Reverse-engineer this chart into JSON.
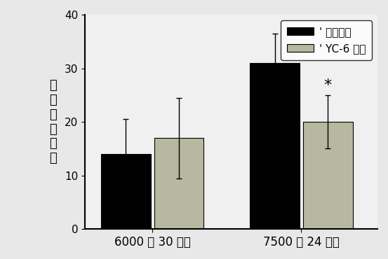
{
  "groups": [
    "6000 米 30 分钟",
    "7500 米 24 小时"
  ],
  "series": [
    {
      "label": "' 溶剂对照",
      "color": "#000000",
      "values": [
        14.0,
        31.0
      ],
      "errors": [
        6.5,
        5.5
      ]
    },
    {
      "label": "' YC-6 处理",
      "color": "#b8b8a0",
      "values": [
        17.0,
        20.0
      ],
      "errors": [
        7.5,
        5.0
      ]
    }
  ],
  "ylabel_chars": [
    "神",
    "经",
    "功",
    "能",
    "评",
    "分"
  ],
  "ylim": [
    0,
    40
  ],
  "yticks": [
    0,
    10,
    20,
    30,
    40
  ],
  "bar_width": 0.28,
  "group_centers": [
    0.38,
    1.22
  ],
  "xlim": [
    0.0,
    1.65
  ],
  "annotation": {
    "group": 1,
    "series": 1,
    "text": "*",
    "fontsize": 16
  },
  "background_color": "#e8e8e8",
  "plot_bg_color": "#f0f0f0",
  "legend_fontsize": 11,
  "ylabel_fontsize": 13,
  "tick_fontsize": 11,
  "xlabel_fontsize": 12,
  "xtick_positions": [
    0.38,
    1.22
  ]
}
